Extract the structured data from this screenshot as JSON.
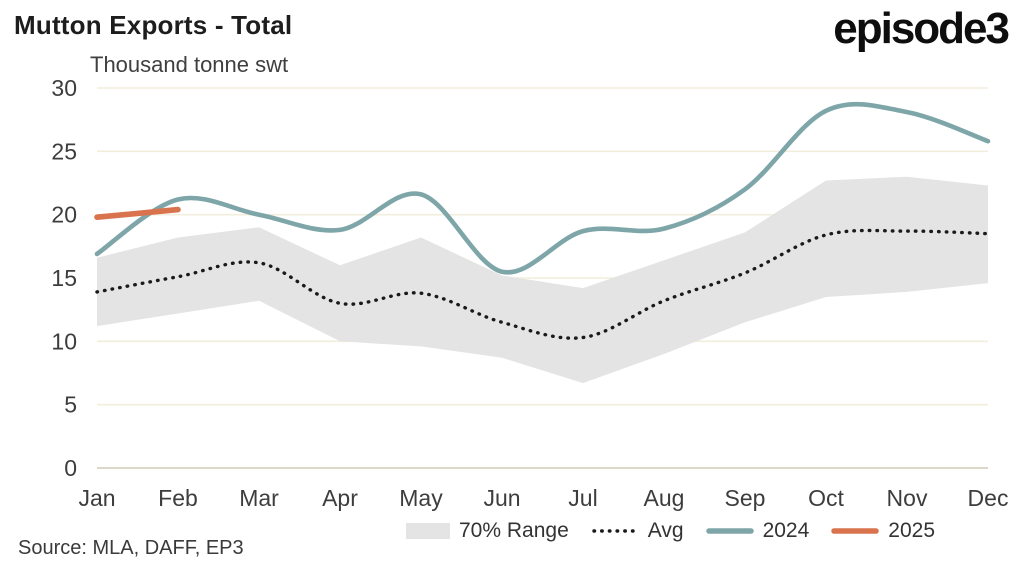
{
  "header": {
    "title": "Mutton Exports - Total",
    "logo": "episode3"
  },
  "footer": {
    "source": "Source: MLA, DAFF, EP3"
  },
  "colors": {
    "background": "#FFFFFF",
    "band": "#E4E4E4",
    "avg": "#1A1A1A",
    "line_2024": "#7EA6A9",
    "line_2025": "#D8734E",
    "gridline": "#F2EEDC",
    "axis_line": "#DBD8CA",
    "tick_text": "#3D3D3D",
    "title_text": "#1D1D1D"
  },
  "chart_data": {
    "type": "line",
    "title": "Mutton Exports - Total",
    "unit_label": "Thousand tonne swt",
    "categories": [
      "Jan",
      "Feb",
      "Mar",
      "Apr",
      "May",
      "Jun",
      "Jul",
      "Aug",
      "Sep",
      "Oct",
      "Nov",
      "Dec"
    ],
    "ylim": [
      0,
      30
    ],
    "yticks": [
      0,
      5,
      10,
      15,
      20,
      25,
      30
    ],
    "grid": "horizontal",
    "legend_position": "bottom",
    "band": {
      "name": "70% Range",
      "top": [
        16.6,
        18.2,
        19.0,
        16.0,
        18.2,
        15.2,
        14.2,
        16.4,
        18.6,
        22.7,
        23.0,
        22.3
      ],
      "bottom": [
        11.2,
        12.2,
        13.2,
        10.0,
        9.6,
        8.7,
        6.7,
        9.0,
        11.5,
        13.5,
        13.9,
        14.6
      ]
    },
    "series": [
      {
        "name": "Avg",
        "style": "dotted",
        "color": "#1A1A1A",
        "values": [
          13.9,
          15.1,
          16.2,
          13.0,
          13.8,
          11.5,
          10.3,
          13.2,
          15.4,
          18.4,
          18.7,
          18.5
        ]
      },
      {
        "name": "2024",
        "style": "solid",
        "color": "#7EA6A9",
        "values": [
          16.9,
          21.2,
          20.0,
          18.8,
          21.6,
          15.5,
          18.7,
          18.9,
          22.0,
          28.2,
          28.1,
          25.8
        ]
      },
      {
        "name": "2025",
        "style": "solid",
        "color": "#D8734E",
        "values": [
          19.8,
          20.4,
          null,
          null,
          null,
          null,
          null,
          null,
          null,
          null,
          null,
          null
        ]
      }
    ]
  },
  "legend": {
    "items": [
      {
        "label": "70% Range",
        "type": "band",
        "color": "#E4E4E4"
      },
      {
        "label": "Avg",
        "type": "dotted",
        "color": "#1A1A1A"
      },
      {
        "label": "2024",
        "type": "line",
        "color": "#7EA6A9"
      },
      {
        "label": "2025",
        "type": "line",
        "color": "#D8734E"
      }
    ]
  }
}
